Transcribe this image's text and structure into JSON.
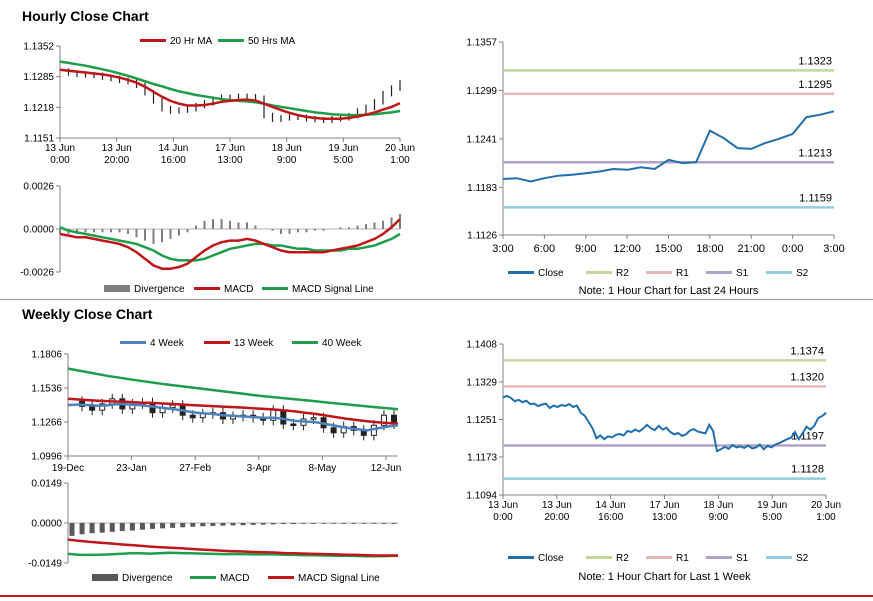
{
  "sections": {
    "hourly_title": "Hourly Close Chart",
    "weekly_title": "Weekly Close Chart"
  },
  "chart_data": [
    {
      "id": "hourly-price",
      "type": "line",
      "title": "Hourly Close Chart",
      "legend": [
        "20 Hr MA",
        "50 Hrs MA"
      ],
      "legend_colors": [
        "#c0161a",
        "#1e9e4a"
      ],
      "y_ticks": [
        "1.1352",
        "1.1285",
        "1.1218",
        "1.1151"
      ],
      "ylim": [
        1.1151,
        1.1352
      ],
      "x_ticks": [
        [
          "13 Jun",
          "0:00"
        ],
        [
          "13 Jun",
          "20:00"
        ],
        [
          "14 Jun",
          "16:00"
        ],
        [
          "17 Jun",
          "13:00"
        ],
        [
          "18 Jun",
          "9:00"
        ],
        [
          "19 Jun",
          "5:00"
        ],
        [
          "20 Jun",
          "1:00"
        ]
      ],
      "series": [
        {
          "name": "Close",
          "values": [
            1.1297,
            1.1293,
            1.129,
            1.1289,
            1.1288,
            1.1284,
            1.1281,
            1.1277,
            1.1274,
            1.1266,
            1.125,
            1.1232,
            1.1215,
            1.121,
            1.1212,
            1.1215,
            1.1222,
            1.1228,
            1.1236,
            1.124,
            1.1238,
            1.1242,
            1.1241,
            1.1238,
            1.12,
            1.1192,
            1.1195,
            1.1197,
            1.1196,
            1.1193,
            1.1191,
            1.119,
            1.1193,
            1.1195,
            1.12,
            1.121,
            1.1218,
            1.123,
            1.1248,
            1.126,
            1.1272
          ]
        },
        {
          "name": "20 Hr MA",
          "values": [
            1.13,
            1.1298,
            1.1296,
            1.1294,
            1.1292,
            1.129,
            1.1287,
            1.1283,
            1.1278,
            1.1272,
            1.1263,
            1.1252,
            1.1241,
            1.1232,
            1.1226,
            1.1222,
            1.1222,
            1.1223,
            1.1226,
            1.123,
            1.1232,
            1.1234,
            1.1235,
            1.1233,
            1.1226,
            1.1219,
            1.1212,
            1.1206,
            1.1201,
            1.1197,
            1.1195,
            1.1193,
            1.1193,
            1.1193,
            1.1195,
            1.1198,
            1.1202,
            1.1207,
            1.1213,
            1.1219,
            1.1227
          ]
        },
        {
          "name": "50 Hrs MA",
          "values": [
            1.1318,
            1.1315,
            1.1312,
            1.1309,
            1.1305,
            1.1301,
            1.1297,
            1.1292,
            1.1287,
            1.1281,
            1.1275,
            1.1269,
            1.1264,
            1.1258,
            1.1253,
            1.1249,
            1.1245,
            1.1242,
            1.1239,
            1.1236,
            1.1234,
            1.1232,
            1.1231,
            1.1229,
            1.1226,
            1.1222,
            1.1219,
            1.1216,
            1.1213,
            1.121,
            1.1207,
            1.1205,
            1.1203,
            1.1202,
            1.1201,
            1.1201,
            1.1202,
            1.1203,
            1.1205,
            1.1207,
            1.121
          ]
        }
      ]
    },
    {
      "id": "hourly-macd",
      "type": "line",
      "legend": [
        "Divergence",
        "MACD",
        "MACD Signal Line"
      ],
      "legend_colors": [
        "#7f7f7f",
        "#c0161a",
        "#1e9e4a"
      ],
      "y_ticks": [
        "0.0026",
        "0.0000",
        "-0.0026"
      ],
      "ylim": [
        -0.0026,
        0.0026
      ],
      "series": [
        {
          "name": "MACD",
          "values": [
            -0.0003,
            -0.0004,
            -0.0005,
            -0.0005,
            -0.0006,
            -0.0007,
            -0.0008,
            -0.0009,
            -0.0011,
            -0.0014,
            -0.0018,
            -0.0022,
            -0.0024,
            -0.0024,
            -0.0023,
            -0.0021,
            -0.0017,
            -0.0013,
            -0.001,
            -0.0008,
            -0.0007,
            -0.0007,
            -0.0006,
            -0.0007,
            -0.0009,
            -0.0011,
            -0.0013,
            -0.0014,
            -0.0014,
            -0.0014,
            -0.0014,
            -0.0014,
            -0.0013,
            -0.0012,
            -0.0011,
            -0.001,
            -0.0008,
            -0.0006,
            -0.0003,
            0.0001,
            0.0006
          ]
        },
        {
          "name": "MACD Signal Line",
          "values": [
            0.0001,
            -0.0001,
            -0.0002,
            -0.0003,
            -0.0004,
            -0.0005,
            -0.0006,
            -0.0007,
            -0.0008,
            -0.0009,
            -0.0011,
            -0.0013,
            -0.0016,
            -0.0018,
            -0.0019,
            -0.0019,
            -0.0019,
            -0.0018,
            -0.0016,
            -0.0014,
            -0.0012,
            -0.0011,
            -0.001,
            -0.0009,
            -0.0009,
            -0.001,
            -0.001,
            -0.0011,
            -0.0012,
            -0.0012,
            -0.0013,
            -0.0013,
            -0.0013,
            -0.0013,
            -0.0012,
            -0.0012,
            -0.0011,
            -0.001,
            -0.0008,
            -0.0006,
            -0.0003
          ]
        },
        {
          "name": "Divergence",
          "values": [
            -0.0003,
            -0.0003,
            -0.0003,
            -0.0002,
            -0.0002,
            -0.0002,
            -0.0002,
            -0.0002,
            -0.0003,
            -0.0005,
            -0.0007,
            -0.0009,
            -0.0008,
            -0.0006,
            -0.0004,
            -0.0002,
            0.0002,
            0.0005,
            0.0006,
            0.0006,
            0.0005,
            0.0004,
            0.0004,
            0.0002,
            0.0,
            -0.0001,
            -0.0003,
            -0.0003,
            -0.0002,
            -0.0002,
            -0.0001,
            -0.0001,
            0.0,
            0.0001,
            0.0001,
            0.0002,
            0.0003,
            0.0004,
            0.0005,
            0.0007,
            0.0009
          ]
        }
      ]
    },
    {
      "id": "hourly-24h",
      "type": "line",
      "note": "Note: 1 Hour Chart for Last 24 Hours",
      "y_ticks": [
        "1.1357",
        "1.1299",
        "1.1241",
        "1.1183",
        "1.1126"
      ],
      "ylim": [
        1.1126,
        1.1357
      ],
      "x_ticks": [
        "3:00",
        "6:00",
        "9:00",
        "12:00",
        "15:00",
        "18:00",
        "21:00",
        "0:00",
        "3:00"
      ],
      "levels": [
        {
          "name": "R2",
          "value": 1.1323,
          "label": "1.1323",
          "color": "#c3d69b"
        },
        {
          "name": "R1",
          "value": 1.1295,
          "label": "1.1295",
          "color": "#e6b9b8"
        },
        {
          "name": "S1",
          "value": 1.1213,
          "label": "1.1213",
          "color": "#b3a2c7"
        },
        {
          "name": "S2",
          "value": 1.1159,
          "label": "1.1159",
          "color": "#93cddd"
        }
      ],
      "legend": [
        "Close",
        "R2",
        "R1",
        "S1",
        "S2"
      ],
      "series": [
        {
          "name": "Close",
          "color": "#1f6fad",
          "values": [
            1.1193,
            1.1194,
            1.119,
            1.1194,
            1.1197,
            1.1198,
            1.12,
            1.1202,
            1.1205,
            1.1204,
            1.1207,
            1.1205,
            1.1216,
            1.1212,
            1.1213,
            1.1251,
            1.1242,
            1.123,
            1.1229,
            1.1236,
            1.1241,
            1.1247,
            1.1267,
            1.127,
            1.1274
          ]
        }
      ]
    },
    {
      "id": "weekly-price",
      "type": "line",
      "title": "Weekly Close Chart",
      "legend": [
        "4 Week",
        "13 Week",
        "40 Week"
      ],
      "legend_colors": [
        "#4f81bd",
        "#c0161a",
        "#1e9e4a"
      ],
      "y_ticks": [
        "1.1806",
        "1.1536",
        "1.1266",
        "1.0996"
      ],
      "ylim": [
        1.0996,
        1.1806
      ],
      "x_ticks": [
        "19-Dec",
        "23-Jan",
        "27-Feb",
        "3-Apr",
        "8-May",
        "12-Jun"
      ],
      "series": [
        {
          "name": "Close",
          "values": [
            1.143,
            1.139,
            1.136,
            1.141,
            1.145,
            1.137,
            1.141,
            1.142,
            1.134,
            1.138,
            1.14,
            1.132,
            1.13,
            1.133,
            1.134,
            1.129,
            1.131,
            1.132,
            1.13,
            1.128,
            1.136,
            1.125,
            1.124,
            1.129,
            1.13,
            1.122,
            1.118,
            1.123,
            1.12,
            1.116,
            1.124,
            1.132,
            1.125
          ]
        },
        {
          "name": "4 Week",
          "values": [
            1.14,
            1.1405,
            1.14,
            1.1395,
            1.14,
            1.141,
            1.1405,
            1.14,
            1.139,
            1.138,
            1.137,
            1.136,
            1.1345,
            1.1335,
            1.133,
            1.132,
            1.1315,
            1.131,
            1.1305,
            1.13,
            1.13,
            1.129,
            1.1275,
            1.127,
            1.1265,
            1.125,
            1.1235,
            1.122,
            1.121,
            1.12,
            1.1215,
            1.123,
            1.124
          ]
        },
        {
          "name": "13 Week",
          "values": [
            1.145,
            1.1445,
            1.144,
            1.1435,
            1.143,
            1.1428,
            1.1425,
            1.142,
            1.1418,
            1.1414,
            1.141,
            1.1405,
            1.14,
            1.1396,
            1.1392,
            1.1388,
            1.1384,
            1.138,
            1.1375,
            1.137,
            1.1365,
            1.1358,
            1.135,
            1.134,
            1.133,
            1.1318,
            1.1305,
            1.1292,
            1.1282,
            1.1272,
            1.1264,
            1.1258,
            1.1252
          ]
        },
        {
          "name": "40 Week",
          "values": [
            1.169,
            1.1675,
            1.166,
            1.1645,
            1.163,
            1.1618,
            1.1605,
            1.1593,
            1.1582,
            1.157,
            1.156,
            1.155,
            1.154,
            1.153,
            1.152,
            1.151,
            1.15,
            1.149,
            1.148,
            1.147,
            1.1462,
            1.1454,
            1.1446,
            1.1438,
            1.143,
            1.1422,
            1.1414,
            1.1406,
            1.1398,
            1.139,
            1.1382,
            1.1375,
            1.1368
          ]
        }
      ]
    },
    {
      "id": "weekly-macd",
      "type": "bar",
      "legend": [
        "Divergence",
        "MACD",
        "MACD Signal Line"
      ],
      "legend_colors": [
        "#595959",
        "#1e9e4a",
        "#c0161a"
      ],
      "y_ticks": [
        "0.0149",
        "0.0000",
        "-0.0149"
      ],
      "ylim": [
        -0.0149,
        0.0149
      ],
      "series": [
        {
          "name": "Divergence",
          "values": [
            -0.0048,
            -0.0042,
            -0.0038,
            -0.0036,
            -0.0033,
            -0.003,
            -0.0028,
            -0.0025,
            -0.0022,
            -0.002,
            -0.0018,
            -0.0016,
            -0.0014,
            -0.0012,
            -0.0011,
            -0.001,
            -0.0009,
            -0.0008,
            -0.0007,
            -0.0006,
            -0.0005,
            -0.0004,
            -0.0004,
            -0.0003,
            -0.0003,
            -0.0002,
            -0.0002,
            -0.0001,
            -0.0001,
            0.0,
            0.0,
            0.0,
            0.0
          ]
        },
        {
          "name": "MACD",
          "values": [
            -0.0115,
            -0.0118,
            -0.0119,
            -0.0118,
            -0.0117,
            -0.0115,
            -0.0113,
            -0.0113,
            -0.0114,
            -0.0112,
            -0.0111,
            -0.0112,
            -0.0113,
            -0.0114,
            -0.0115,
            -0.0116,
            -0.0116,
            -0.0116,
            -0.0117,
            -0.0117,
            -0.0117,
            -0.0118,
            -0.0119,
            -0.012,
            -0.012,
            -0.0121,
            -0.0122,
            -0.0122,
            -0.0123,
            -0.0124,
            -0.0124,
            -0.0123,
            -0.0122
          ]
        },
        {
          "name": "MACD Signal Line",
          "values": [
            -0.0062,
            -0.0066,
            -0.007,
            -0.0073,
            -0.0076,
            -0.0079,
            -0.0082,
            -0.0085,
            -0.0088,
            -0.009,
            -0.0092,
            -0.0094,
            -0.0097,
            -0.0099,
            -0.0101,
            -0.0103,
            -0.0105,
            -0.0106,
            -0.0108,
            -0.0109,
            -0.011,
            -0.0112,
            -0.0113,
            -0.0114,
            -0.0115,
            -0.0116,
            -0.0117,
            -0.0118,
            -0.0119,
            -0.012,
            -0.0121,
            -0.0121,
            -0.0121
          ]
        }
      ]
    },
    {
      "id": "weekly-1w",
      "type": "line",
      "note": "Note: 1 Hour Chart for Last 1 Week",
      "y_ticks": [
        "1.1408",
        "1.1329",
        "1.1251",
        "1.1173",
        "1.1094"
      ],
      "ylim": [
        1.1094,
        1.1408
      ],
      "x_ticks": [
        [
          "13 Jun",
          "0:00"
        ],
        [
          "13 Jun",
          "20:00"
        ],
        [
          "14 Jun",
          "16:00"
        ],
        [
          "17 Jun",
          "13:00"
        ],
        [
          "18 Jun",
          "9:00"
        ],
        [
          "19 Jun",
          "5:00"
        ],
        [
          "20 Jun",
          "1:00"
        ]
      ],
      "levels": [
        {
          "name": "R2",
          "value": 1.1374,
          "label": "1.1374",
          "color": "#c3d69b"
        },
        {
          "name": "R1",
          "value": 1.132,
          "label": "1.1320",
          "color": "#e6b9b8"
        },
        {
          "name": "S1",
          "value": 1.1197,
          "label": "1.1197",
          "color": "#b3a2c7"
        },
        {
          "name": "S2",
          "value": 1.1128,
          "label": "1.1128",
          "color": "#93cddd"
        }
      ],
      "legend": [
        "Close",
        "R2",
        "R1",
        "S1",
        "S2"
      ],
      "series": [
        {
          "name": "Close",
          "color": "#1f6fad",
          "values": [
            1.1297,
            1.13,
            1.1296,
            1.1289,
            1.1292,
            1.1287,
            1.129,
            1.1283,
            1.1284,
            1.1279,
            1.1282,
            1.1284,
            1.1275,
            1.128,
            1.1277,
            1.1281,
            1.1279,
            1.1283,
            1.1277,
            1.128,
            1.1265,
            1.1259,
            1.1246,
            1.1233,
            1.1212,
            1.1218,
            1.121,
            1.1216,
            1.1214,
            1.1219,
            1.1221,
            1.1218,
            1.1227,
            1.1225,
            1.123,
            1.1226,
            1.1232,
            1.124,
            1.1233,
            1.1229,
            1.1238,
            1.123,
            1.1234,
            1.1225,
            1.122,
            1.1223,
            1.1217,
            1.122,
            1.1228,
            1.1231,
            1.1226,
            1.1224,
            1.1222,
            1.124,
            1.1227,
            1.1185,
            1.1189,
            1.1194,
            1.119,
            1.1198,
            1.1193,
            1.1195,
            1.1192,
            1.1197,
            1.1191,
            1.1193,
            1.1199,
            1.1189,
            1.1196,
            1.1193,
            1.1199,
            1.1202,
            1.1206,
            1.121,
            1.1213,
            1.1225,
            1.121,
            1.1223,
            1.1236,
            1.123,
            1.1238,
            1.1254,
            1.1258,
            1.1265
          ]
        }
      ]
    }
  ]
}
